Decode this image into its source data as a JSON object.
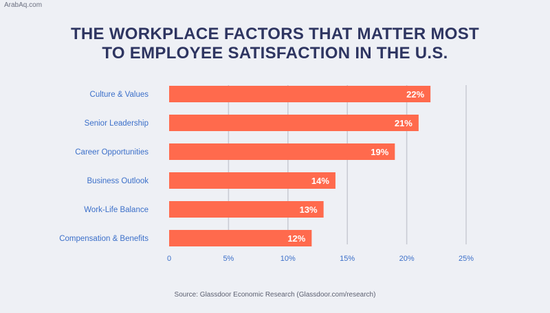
{
  "watermark": "ArabAq.com",
  "source": "Source: Glassdoor Economic Research (Glassdoor.com/research)",
  "colors": {
    "bar": "#ff6a4d",
    "grid": "#c8cad3",
    "tick": "#3b6fc9",
    "label": "#3b6fc9",
    "title": "#2e3561",
    "bar_label": "#ffffff"
  },
  "chart_data": {
    "type": "bar",
    "orientation": "horizontal",
    "title": [
      "THE WORKPLACE FACTORS THAT MATTER MOST",
      "TO EMPLOYEE SATISFACTION IN THE U.S."
    ],
    "categories": [
      "Culture & Values",
      "Senior Leadership",
      "Career Opportunities",
      "Business Outlook",
      "Work-Life Balance",
      "Compensation & Benefits"
    ],
    "values": [
      22,
      21,
      19,
      14,
      13,
      12
    ],
    "value_labels": [
      "22%",
      "21%",
      "19%",
      "14%",
      "13%",
      "12%"
    ],
    "xlim": [
      0,
      25
    ],
    "xticks": [
      0,
      5,
      10,
      15,
      20,
      25
    ],
    "xtick_labels": [
      "0",
      "5%",
      "10%",
      "15%",
      "20%",
      "25%"
    ],
    "grid": true
  }
}
